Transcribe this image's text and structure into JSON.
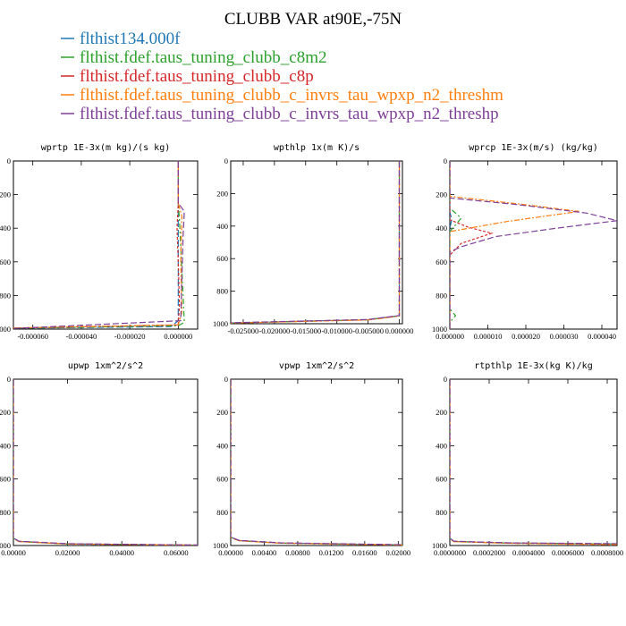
{
  "figure_title": "CLUBB VAR at90E,-75N",
  "legend": [
    {
      "label": "flthist134.000f",
      "color": "#1f77b4"
    },
    {
      "label": "flthist.fdef.taus_tuning_clubb_c8m2",
      "color": "#2ca02c"
    },
    {
      "label": "flthist.fdef.taus_tuning_clubb_c8p",
      "color": "#d62728"
    },
    {
      "label": "flthist.fdef.taus_tuning_clubb_c_invrs_tau_wpxp_n2_threshm",
      "color": "#ff7f0e"
    },
    {
      "label": "flthist.fdef.taus_tuning_clubb_c_invrs_tau_wpxp_n2_threshp",
      "color": "#7f3f98"
    }
  ],
  "chart_data": [
    {
      "type": "line",
      "title": "wprtp  1E-3x(m kg)/(s kg)",
      "xlim": [
        -6.8e-05,
        8e-06
      ],
      "ylim": [
        1000,
        0
      ],
      "xticks": [
        -6e-05,
        -4e-05,
        -2e-05,
        0.0
      ],
      "xtick_labels": [
        "-0.000060",
        "-0.000040",
        "-0.000020",
        "0.000000"
      ],
      "yticks": [
        0,
        200,
        400,
        600,
        800,
        1000
      ],
      "series": [
        {
          "color": "#1f77b4",
          "points": [
            [
              0.0,
              0
            ],
            [
              0.0,
              200
            ],
            [
              0.0,
              400
            ],
            [
              0.0,
              700
            ],
            [
              0.0,
              950
            ],
            [
              -3e-06,
              985
            ],
            [
              -6.8e-05,
              995
            ]
          ]
        },
        {
          "color": "#2ca02c",
          "points": [
            [
              0.0,
              0
            ],
            [
              0.0,
              250
            ],
            [
              5e-07,
              350
            ],
            [
              1e-06,
              500
            ],
            [
              2e-06,
              800
            ],
            [
              2.5e-06,
              960
            ],
            [
              0.0,
              980
            ],
            [
              -6.8e-05,
              995
            ]
          ]
        },
        {
          "color": "#d62728",
          "points": [
            [
              0.0,
              0
            ],
            [
              0.0,
              250
            ],
            [
              -5e-07,
              400
            ],
            [
              0.0,
              600
            ],
            [
              5e-07,
              850
            ],
            [
              0.0,
              975
            ],
            [
              -6.8e-05,
              994
            ]
          ]
        },
        {
          "color": "#ff7f0e",
          "points": [
            [
              0.0,
              0
            ],
            [
              0.0,
              250
            ],
            [
              1.5e-06,
              330
            ],
            [
              1e-06,
              600
            ],
            [
              1.5e-06,
              900
            ],
            [
              0.0,
              975
            ],
            [
              -6.8e-05,
              993
            ]
          ]
        },
        {
          "color": "#7f3f98",
          "points": [
            [
              0.0,
              0
            ],
            [
              0.0,
              250
            ],
            [
              2.5e-06,
              300
            ],
            [
              2e-06,
              450
            ],
            [
              1.5e-06,
              700
            ],
            [
              1e-06,
              950
            ],
            [
              -6.8e-05,
              996
            ]
          ]
        }
      ]
    },
    {
      "type": "line",
      "title": "wpthlp  1x(m K)/s",
      "xlim": [
        -0.027,
        0.0005
      ],
      "ylim": [
        1000,
        0
      ],
      "xticks": [
        -0.025,
        -0.02,
        -0.015,
        -0.01,
        -0.005,
        0.0
      ],
      "xtick_labels": [
        "-0.025000",
        "-0.020000",
        "-0.015000",
        "-0.010000",
        "-0.005000",
        "0.000000"
      ],
      "yticks": [
        0,
        200,
        400,
        600,
        800,
        1000
      ],
      "series": [
        {
          "color": "#1f77b4",
          "points": [
            [
              0.0,
              0
            ],
            [
              0.0,
              900
            ],
            [
              0.0,
              950
            ],
            [
              -0.005,
              975
            ],
            [
              -0.027,
              995
            ]
          ]
        },
        {
          "color": "#2ca02c",
          "points": [
            [
              0.0,
              0
            ],
            [
              0.0,
              900
            ],
            [
              0.0,
              952
            ],
            [
              -0.005,
              976
            ],
            [
              -0.027,
              996
            ]
          ]
        },
        {
          "color": "#d62728",
          "points": [
            [
              0.0,
              0
            ],
            [
              0.0,
              900
            ],
            [
              0.0,
              951
            ],
            [
              -0.005,
              975
            ],
            [
              -0.027,
              995
            ]
          ]
        },
        {
          "color": "#ff7f0e",
          "points": [
            [
              0.0,
              0
            ],
            [
              0.0,
              900
            ],
            [
              0.0,
              953
            ],
            [
              -0.005,
              977
            ],
            [
              -0.027,
              996
            ]
          ]
        },
        {
          "color": "#7f3f98",
          "points": [
            [
              0.0,
              0
            ],
            [
              0.0,
              900
            ],
            [
              0.0,
              950
            ],
            [
              -0.005,
              974
            ],
            [
              -0.027,
              994
            ]
          ]
        }
      ]
    },
    {
      "type": "line",
      "title": "wprcp  1E-3x(m/s) (kg/kg)",
      "xlim": [
        0.0,
        4.4e-05
      ],
      "ylim": [
        1000,
        0
      ],
      "xticks": [
        0.0,
        1e-05,
        2e-05,
        3e-05,
        4e-05
      ],
      "xtick_labels": [
        "0.000000",
        "0.000010",
        "0.000020",
        "0.000030",
        "0.000040"
      ],
      "yticks": [
        0,
        200,
        400,
        600,
        800,
        1000
      ],
      "series": [
        {
          "color": "#1f77b4",
          "points": [
            [
              0.0,
              0
            ],
            [
              0.0,
              300
            ],
            [
              5e-07,
              350
            ],
            [
              0.0,
              400
            ],
            [
              0.0,
              1000
            ]
          ]
        },
        {
          "color": "#2ca02c",
          "points": [
            [
              0.0,
              0
            ],
            [
              0.0,
              280
            ],
            [
              3e-06,
              340
            ],
            [
              0.0,
              420
            ],
            [
              0.0,
              880
            ],
            [
              1.5e-06,
              920
            ],
            [
              0.0,
              960
            ],
            [
              0.0,
              1000
            ]
          ]
        },
        {
          "color": "#d62728",
          "points": [
            [
              0.0,
              0
            ],
            [
              0.0,
              350
            ],
            [
              5e-06,
              395
            ],
            [
              1.1e-05,
              430
            ],
            [
              3e-06,
              490
            ],
            [
              0.0,
              560
            ],
            [
              0.0,
              1000
            ]
          ]
        },
        {
          "color": "#ff7f0e",
          "points": [
            [
              0.0,
              0
            ],
            [
              0.0,
              210
            ],
            [
              1.8e-05,
              255
            ],
            [
              3.4e-05,
              300
            ],
            [
              1.5e-05,
              360
            ],
            [
              5e-06,
              400
            ],
            [
              0.0,
              420
            ],
            [
              0.0,
              1000
            ]
          ]
        },
        {
          "color": "#7f3f98",
          "points": [
            [
              0.0,
              0
            ],
            [
              0.0,
              220
            ],
            [
              1.8e-05,
              260
            ],
            [
              3.6e-05,
              310
            ],
            [
              4.4e-05,
              355
            ],
            [
              2.8e-05,
              400
            ],
            [
              1.2e-05,
              450
            ],
            [
              3e-06,
              510
            ],
            [
              0.0,
              540
            ],
            [
              0.0,
              1000
            ]
          ]
        }
      ]
    },
    {
      "type": "line",
      "title": "upwp  1xm^2/s^2",
      "xlim": [
        0.0,
        0.068
      ],
      "ylim": [
        1000,
        0
      ],
      "xticks": [
        0.0,
        0.02,
        0.04,
        0.06
      ],
      "xtick_labels": [
        "0.00000",
        "0.02000",
        "0.04000",
        "0.06000"
      ],
      "yticks": [
        0,
        200,
        400,
        600,
        800,
        1000
      ],
      "series": [
        {
          "color": "#1f77b4",
          "points": [
            [
              0.0,
              0
            ],
            [
              0.0,
              955
            ],
            [
              0.002,
              975
            ],
            [
              0.02,
              990
            ],
            [
              0.068,
              998
            ]
          ]
        },
        {
          "color": "#2ca02c",
          "points": [
            [
              0.0,
              0
            ],
            [
              0.0,
              956
            ],
            [
              0.002,
              976
            ],
            [
              0.02,
              991
            ],
            [
              0.068,
              998
            ]
          ]
        },
        {
          "color": "#d62728",
          "points": [
            [
              0.0,
              0
            ],
            [
              0.0,
              955
            ],
            [
              0.002,
              975
            ],
            [
              0.02,
              990
            ],
            [
              0.068,
              997
            ]
          ]
        },
        {
          "color": "#ff7f0e",
          "points": [
            [
              0.0,
              0
            ],
            [
              0.0,
              957
            ],
            [
              0.002,
              977
            ],
            [
              0.02,
              991
            ],
            [
              0.068,
              998
            ]
          ]
        },
        {
          "color": "#7f3f98",
          "points": [
            [
              0.0,
              0
            ],
            [
              0.0,
              955
            ],
            [
              0.002,
              974
            ],
            [
              0.02,
              989
            ],
            [
              0.068,
              997
            ]
          ]
        }
      ]
    },
    {
      "type": "line",
      "title": "vpwp  1xm^2/s^2",
      "xlim": [
        0.0,
        0.0205
      ],
      "ylim": [
        1000,
        0
      ],
      "xticks": [
        0.0,
        0.004,
        0.008,
        0.012,
        0.016,
        0.02
      ],
      "xtick_labels": [
        "0.00000",
        "0.00400",
        "0.00800",
        "0.01200",
        "0.01600",
        "0.02000"
      ],
      "yticks": [
        0,
        200,
        400,
        600,
        800,
        1000
      ],
      "series": [
        {
          "color": "#1f77b4",
          "points": [
            [
              0.0,
              0
            ],
            [
              0.0,
              950
            ],
            [
              0.001,
              970
            ],
            [
              0.006,
              985
            ],
            [
              0.0205,
              996
            ]
          ]
        },
        {
          "color": "#2ca02c",
          "points": [
            [
              0.0,
              0
            ],
            [
              0.0,
              951
            ],
            [
              0.001,
              971
            ],
            [
              0.006,
              986
            ],
            [
              0.0205,
              997
            ]
          ]
        },
        {
          "color": "#d62728",
          "points": [
            [
              0.0,
              0
            ],
            [
              0.0,
              950
            ],
            [
              0.001,
              970
            ],
            [
              0.006,
              985
            ],
            [
              0.0205,
              996
            ]
          ]
        },
        {
          "color": "#ff7f0e",
          "points": [
            [
              0.0,
              0
            ],
            [
              0.0,
              952
            ],
            [
              0.001,
              972
            ],
            [
              0.006,
              986
            ],
            [
              0.0205,
              997
            ]
          ]
        },
        {
          "color": "#7f3f98",
          "points": [
            [
              0.0,
              0
            ],
            [
              0.0,
              950
            ],
            [
              0.001,
              969
            ],
            [
              0.006,
              984
            ],
            [
              0.0205,
              995
            ]
          ]
        }
      ]
    },
    {
      "type": "line",
      "title": "rtpthlp  1E-3x(kg K)/kg",
      "xlim": [
        0.0,
        0.00085
      ],
      "ylim": [
        1000,
        0
      ],
      "xticks": [
        0.0,
        0.0002,
        0.0004,
        0.0006,
        0.0008
      ],
      "xtick_labels": [
        "0.0000000",
        "0.0002000",
        "0.0004000",
        "0.0006000",
        "0.0008000"
      ],
      "yticks": [
        0,
        200,
        400,
        600,
        800,
        1000
      ],
      "series": [
        {
          "color": "#1f77b4",
          "points": [
            [
              0.0,
              0
            ],
            [
              0.0,
              955
            ],
            [
              2e-05,
              975
            ],
            [
              0.0003,
              985
            ],
            [
              0.00085,
              990
            ]
          ]
        },
        {
          "color": "#2ca02c",
          "points": [
            [
              0.0,
              0
            ],
            [
              0.0,
              956
            ],
            [
              2e-05,
              976
            ],
            [
              0.0003,
              986
            ],
            [
              0.00085,
              991
            ]
          ]
        },
        {
          "color": "#d62728",
          "points": [
            [
              0.0,
              0
            ],
            [
              0.0,
              955
            ],
            [
              2e-05,
              975
            ],
            [
              0.0003,
              985
            ],
            [
              0.00085,
              992
            ]
          ]
        },
        {
          "color": "#ff7f0e",
          "points": [
            [
              0.0,
              0
            ],
            [
              0.0,
              957
            ],
            [
              2e-05,
              977
            ],
            [
              0.0003,
              987
            ],
            [
              0.00085,
              995
            ]
          ]
        },
        {
          "color": "#7f3f98",
          "points": [
            [
              0.0,
              0
            ],
            [
              0.0,
              955
            ],
            [
              2e-05,
              974
            ],
            [
              0.0003,
              984
            ],
            [
              0.00085,
              989
            ]
          ]
        }
      ]
    }
  ]
}
